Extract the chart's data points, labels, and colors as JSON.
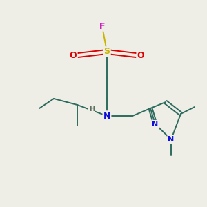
{
  "background_color": "#eeeee6",
  "bond_color": "#2d6b5e",
  "N_color": "#1010dd",
  "O_color": "#dd0000",
  "S_color": "#c8b400",
  "F_color": "#cc00bb",
  "H_color": "#607060",
  "figsize": [
    3.0,
    3.0
  ],
  "dpi": 100,
  "xlim": [
    0,
    300
  ],
  "ylim": [
    0,
    300
  ]
}
